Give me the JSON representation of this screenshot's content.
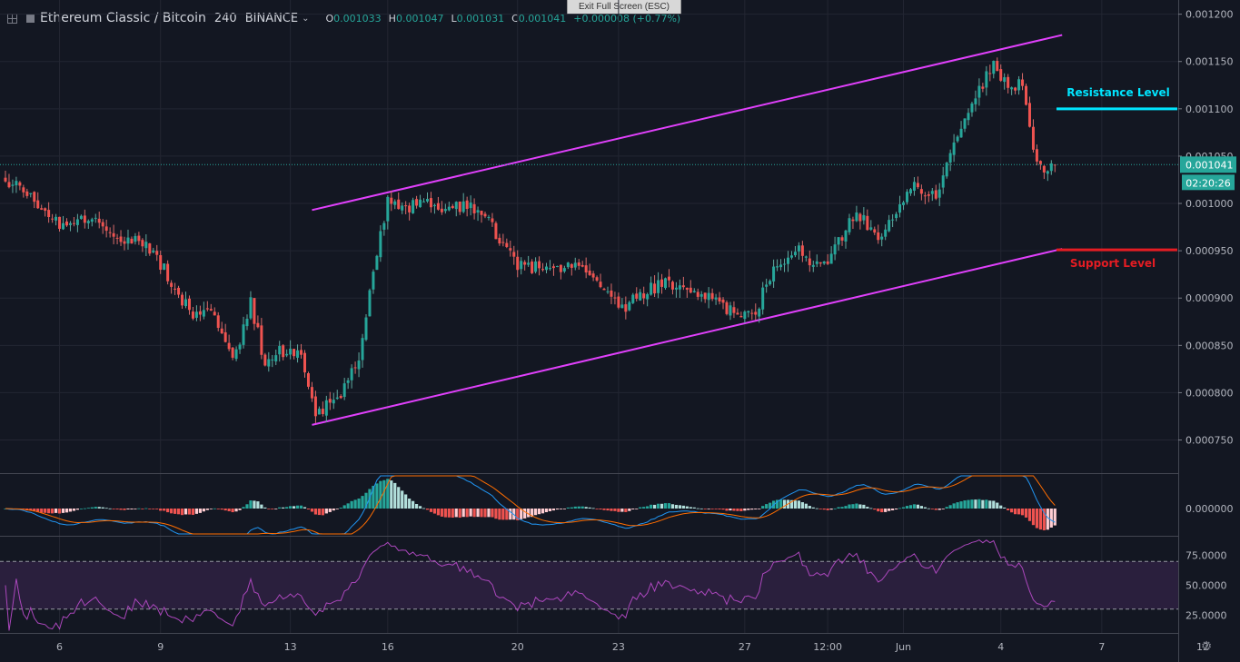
{
  "header": {
    "symbol": "Ethereum Classic / Bitcoin",
    "interval": "240",
    "exchange": "BINANCE",
    "o_label": "O",
    "o_value": "0.001033",
    "h_label": "H",
    "h_value": "0.001047",
    "l_label": "L",
    "l_value": "0.001031",
    "c_label": "C",
    "c_value": "0.001041",
    "change": "+0.000008 (+0.77%)",
    "exit_fullscreen": "Exit Full Screen (ESC)"
  },
  "chart_data": [
    {
      "type": "candlestick",
      "ylim": [
        0.000715,
        0.001215
      ],
      "y_ticks": [
        "0.001200",
        "0.001150",
        "0.001100",
        "0.001050",
        "0.001000",
        "0.000950",
        "0.000900",
        "0.000850",
        "0.000800",
        "0.000750"
      ],
      "y_tick_values": [
        0.0012,
        0.00115,
        0.0011,
        0.00105,
        0.001,
        0.00095,
        0.0009,
        0.00085,
        0.0008,
        0.00075
      ],
      "x_ticks": [
        "6",
        "9",
        "13",
        "16",
        "20",
        "23",
        "27",
        "12:00",
        "Jun",
        "4",
        "7",
        "12"
      ],
      "x_tick_bars": [
        15,
        43,
        79,
        106,
        142,
        170,
        205,
        228,
        249,
        276,
        304,
        332
      ],
      "last_price_label": "0.001041",
      "countdown_label": "02:20:26",
      "last_price": 0.001041,
      "bar_count": 292,
      "anchors": [
        [
          0,
          0.00102
        ],
        [
          5,
          0.001018
        ],
        [
          12,
          0.000985
        ],
        [
          18,
          0.000975
        ],
        [
          25,
          0.00099
        ],
        [
          30,
          0.00096
        ],
        [
          38,
          0.00096
        ],
        [
          44,
          0.00093
        ],
        [
          52,
          0.00088
        ],
        [
          58,
          0.000885
        ],
        [
          63,
          0.00083
        ],
        [
          68,
          0.000895
        ],
        [
          72,
          0.00083
        ],
        [
          76,
          0.000845
        ],
        [
          82,
          0.00084
        ],
        [
          86,
          0.00078
        ],
        [
          89,
          0.000785
        ],
        [
          93,
          0.0008
        ],
        [
          98,
          0.00084
        ],
        [
          102,
          0.00093
        ],
        [
          106,
          0.001005
        ],
        [
          110,
          0.000995
        ],
        [
          116,
          0.001
        ],
        [
          122,
          0.00099
        ],
        [
          128,
          0.001
        ],
        [
          134,
          0.00098
        ],
        [
          142,
          0.000935
        ],
        [
          150,
          0.00093
        ],
        [
          158,
          0.000935
        ],
        [
          166,
          0.00091
        ],
        [
          172,
          0.00089
        ],
        [
          178,
          0.00091
        ],
        [
          184,
          0.000915
        ],
        [
          190,
          0.000905
        ],
        [
          196,
          0.0009
        ],
        [
          202,
          0.000885
        ],
        [
          208,
          0.000885
        ],
        [
          213,
          0.000935
        ],
        [
          220,
          0.00095
        ],
        [
          226,
          0.00093
        ],
        [
          231,
          0.00096
        ],
        [
          236,
          0.00099
        ],
        [
          242,
          0.000965
        ],
        [
          247,
          0.00099
        ],
        [
          252,
          0.00102
        ],
        [
          258,
          0.001005
        ],
        [
          262,
          0.00106
        ],
        [
          266,
          0.001085
        ],
        [
          270,
          0.00112
        ],
        [
          274,
          0.00115
        ],
        [
          278,
          0.00112
        ],
        [
          282,
          0.00113
        ],
        [
          285,
          0.00106
        ],
        [
          288,
          0.00103
        ],
        [
          291,
          0.001041
        ]
      ],
      "channel": {
        "upper": [
          [
            85,
            0.000993
          ],
          [
            293,
            0.001178
          ]
        ],
        "lower": [
          [
            85,
            0.000766
          ],
          [
            293,
            0.000952
          ]
        ],
        "color": "#e040fb"
      },
      "resistance": {
        "label": "Resistance Level",
        "value": 0.0011,
        "color": "#00e5ff"
      },
      "support": {
        "label": "Support Level",
        "value": 0.000951,
        "color": "#e51c23"
      },
      "colors": {
        "up": "#26a69a",
        "down": "#ef5350",
        "wick_up": "#5fa99f",
        "wick_down": "#d86b6a"
      }
    },
    {
      "type": "macd-histogram",
      "ylim": [
        -1.2e-05,
        4.5e-05
      ],
      "y_ticks": [
        "0.000000"
      ],
      "colors": {
        "macd": "#2196f3",
        "signal": "#ff6d00"
      }
    },
    {
      "type": "rsi-line",
      "ylim": [
        10,
        90
      ],
      "y_ticks": [
        "75.0000",
        "50.0000",
        "25.0000"
      ],
      "y_tick_values": [
        75,
        50,
        25
      ],
      "band": [
        30,
        70
      ],
      "color": "#ab47bc"
    }
  ]
}
